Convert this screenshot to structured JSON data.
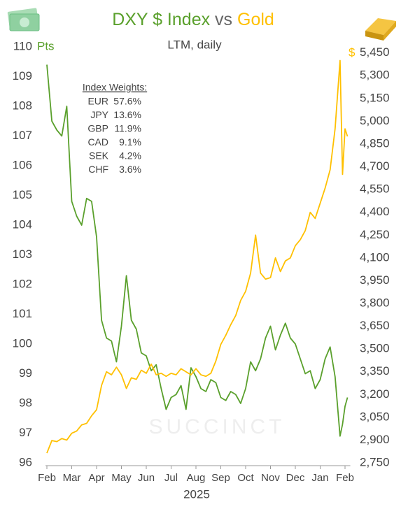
{
  "chart_data": {
    "type": "line",
    "title": [
      "DXY $ Index",
      "vs",
      "Gold"
    ],
    "subtitle": "LTM, daily",
    "y_label": "Pts",
    "y2_label": "$",
    "x_label": "2025",
    "watermark": "SUCCINCT",
    "annotation": {
      "heading": "Index Weights:",
      "rows": [
        {
          "name": "EUR",
          "weight": "57.6%"
        },
        {
          "name": "JPY",
          "weight": "13.6%"
        },
        {
          "name": "GBP",
          "weight": "11.9%"
        },
        {
          "name": "CAD",
          "weight": "9.1%"
        },
        {
          "name": "SEK",
          "weight": "4.2%"
        },
        {
          "name": "CHF",
          "weight": "3.6%"
        }
      ]
    },
    "x": [
      0,
      0.2,
      0.4,
      0.6,
      0.8,
      1.0,
      1.2,
      1.4,
      1.6,
      1.8,
      2.0,
      2.2,
      2.4,
      2.6,
      2.8,
      3.0,
      3.2,
      3.4,
      3.6,
      3.8,
      4.0,
      4.2,
      4.4,
      4.6,
      4.8,
      5.0,
      5.2,
      5.4,
      5.6,
      5.8,
      6.0,
      6.2,
      6.4,
      6.6,
      6.8,
      7.0,
      7.2,
      7.4,
      7.6,
      7.8,
      8.0,
      8.2,
      8.4,
      8.6,
      8.8,
      9.0,
      9.2,
      9.4,
      9.6,
      9.8,
      10.0,
      10.2,
      10.4,
      10.6,
      10.8,
      11.0,
      11.2,
      11.4,
      11.6,
      11.8,
      11.9,
      12.0,
      12.1
    ],
    "xlim": [
      0,
      12.1
    ],
    "xticks": [
      {
        "value": 0,
        "label": "Feb"
      },
      {
        "value": 1,
        "label": "Mar"
      },
      {
        "value": 2,
        "label": "Apr"
      },
      {
        "value": 3,
        "label": "May"
      },
      {
        "value": 4,
        "label": "Jun"
      },
      {
        "value": 5,
        "label": "Jul"
      },
      {
        "value": 6,
        "label": "Aug"
      },
      {
        "value": 7,
        "label": "Sep"
      },
      {
        "value": 8,
        "label": "Oct"
      },
      {
        "value": 9,
        "label": "Nov"
      },
      {
        "value": 10,
        "label": "Dec"
      },
      {
        "value": 11,
        "label": "Jan"
      },
      {
        "value": 12,
        "label": "Feb"
      }
    ],
    "ylim": [
      96,
      110
    ],
    "yticks": [
      96,
      97,
      98,
      99,
      100,
      101,
      102,
      103,
      104,
      105,
      106,
      107,
      108,
      109,
      110
    ],
    "y2lim": [
      2750,
      5490
    ],
    "y2ticks": [
      {
        "value": 2750,
        "label": "2,750"
      },
      {
        "value": 2900,
        "label": "2,900"
      },
      {
        "value": 3050,
        "label": "3,050"
      },
      {
        "value": 3200,
        "label": "3,200"
      },
      {
        "value": 3350,
        "label": "3,350"
      },
      {
        "value": 3500,
        "label": "3,500"
      },
      {
        "value": 3650,
        "label": "3,650"
      },
      {
        "value": 3800,
        "label": "3,800"
      },
      {
        "value": 3950,
        "label": "3,950"
      },
      {
        "value": 4100,
        "label": "4,100"
      },
      {
        "value": 4250,
        "label": "4,250"
      },
      {
        "value": 4400,
        "label": "4,400"
      },
      {
        "value": 4550,
        "label": "4,550"
      },
      {
        "value": 4700,
        "label": "4,700"
      },
      {
        "value": 4850,
        "label": "4,850"
      },
      {
        "value": 5000,
        "label": "5,000"
      },
      {
        "value": 5150,
        "label": "5,150"
      },
      {
        "value": 5300,
        "label": "5,300"
      },
      {
        "value": 5450,
        "label": "5,450"
      }
    ],
    "series": [
      {
        "name": "DXY $ Index",
        "color": "#5aa02c",
        "values": [
          109.4,
          107.5,
          107.2,
          107.0,
          108.0,
          104.8,
          104.3,
          104.0,
          104.9,
          104.8,
          103.6,
          100.8,
          100.2,
          100.1,
          99.4,
          100.6,
          102.3,
          100.8,
          100.5,
          99.7,
          99.6,
          99.1,
          99.3,
          98.5,
          97.8,
          98.2,
          98.3,
          98.6,
          97.8,
          99.2,
          98.9,
          98.5,
          98.4,
          98.8,
          98.7,
          98.2,
          98.1,
          98.4,
          98.3,
          98.0,
          98.5,
          99.4,
          99.1,
          99.5,
          100.2,
          100.6,
          99.8,
          100.3,
          100.7,
          100.2,
          100.0,
          99.5,
          99.0,
          99.1,
          98.5,
          98.8,
          99.5,
          99.9,
          98.9,
          96.9,
          97.3,
          97.9,
          98.2
        ]
      },
      {
        "name": "Gold",
        "color": "#ffc000",
        "axis": "y2",
        "values": [
          2814,
          2897,
          2890,
          2910,
          2900,
          2945,
          2960,
          3000,
          3010,
          3060,
          3100,
          3260,
          3350,
          3330,
          3380,
          3330,
          3240,
          3310,
          3300,
          3360,
          3340,
          3400,
          3330,
          3340,
          3320,
          3340,
          3330,
          3370,
          3350,
          3330,
          3370,
          3330,
          3320,
          3340,
          3420,
          3530,
          3590,
          3660,
          3720,
          3820,
          3880,
          4000,
          4250,
          4000,
          3960,
          3970,
          4100,
          4010,
          4080,
          4100,
          4180,
          4220,
          4280,
          4400,
          4360,
          4460,
          4560,
          4680,
          4950,
          5400,
          4650,
          4950,
          4900
        ]
      }
    ]
  }
}
